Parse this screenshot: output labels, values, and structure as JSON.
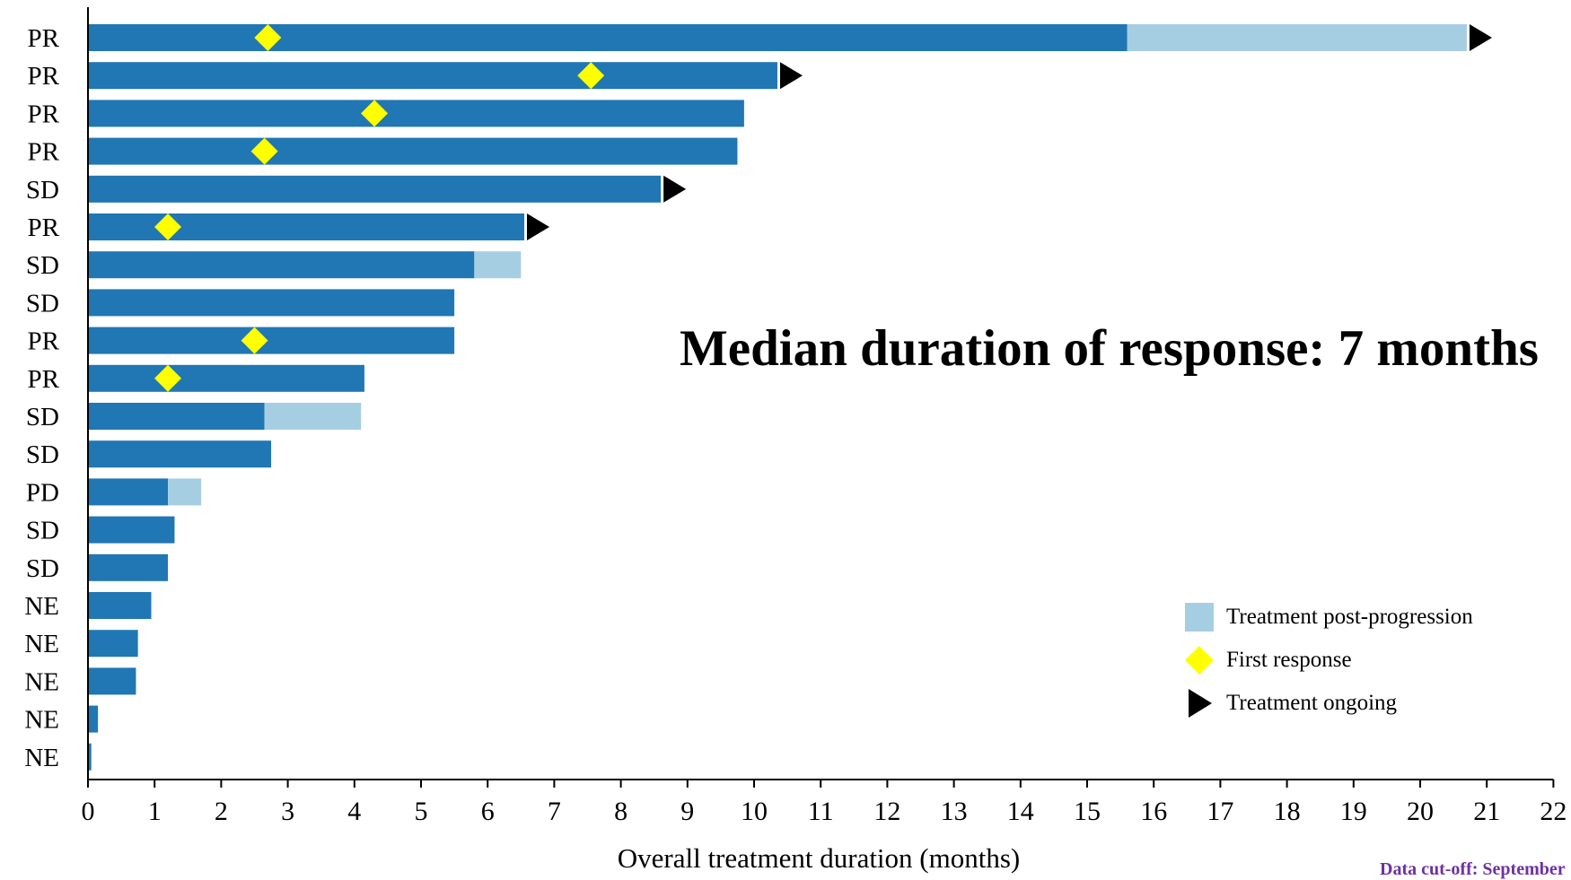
{
  "chart_data": {
    "type": "bar",
    "orientation": "horizontal",
    "title": "",
    "xlabel": "Overall treatment duration (months)",
    "ylabel": "",
    "xlim": [
      0,
      22
    ],
    "xticks": [
      0,
      1,
      2,
      3,
      4,
      5,
      6,
      7,
      8,
      9,
      10,
      11,
      12,
      13,
      14,
      15,
      16,
      17,
      18,
      19,
      20,
      21,
      22
    ],
    "grid": false,
    "legend_position": "bottom-right",
    "categories": [
      "PR",
      "PR",
      "PR",
      "PR",
      "SD",
      "PR",
      "SD",
      "SD",
      "PR",
      "PR",
      "SD",
      "SD",
      "PD",
      "SD",
      "SD",
      "NE",
      "NE",
      "NE",
      "NE",
      "NE"
    ],
    "series": [
      {
        "name": "",
        "color": "#2077b4",
        "values": [
          15.6,
          10.35,
          9.85,
          9.75,
          8.6,
          6.55,
          5.8,
          5.5,
          5.5,
          4.15,
          2.65,
          2.75,
          1.2,
          1.3,
          1.2,
          0.95,
          0.75,
          0.72,
          0.15,
          0.05
        ]
      },
      {
        "name": "Treatment post-progression",
        "color": "#a6cee3",
        "values": [
          5.1,
          0,
          0,
          0,
          0,
          0,
          0.7,
          0,
          0,
          0,
          1.45,
          0,
          0.5,
          0,
          0,
          0,
          0,
          0,
          0,
          0
        ]
      }
    ],
    "first_response": {
      "name": "First response",
      "color": "#ffff00",
      "points": [
        [
          0,
          2.7
        ],
        [
          1,
          7.55
        ],
        [
          2,
          4.3
        ],
        [
          3,
          2.65
        ],
        [
          5,
          1.2
        ],
        [
          8,
          2.5
        ],
        [
          9,
          1.2
        ]
      ]
    },
    "treatment_ongoing": {
      "name": "Treatment ongoing",
      "color": "#000000",
      "rows": [
        0,
        1,
        4,
        5
      ]
    },
    "annotations": [
      {
        "text": "Median duration of response: 7 months"
      },
      {
        "text": "Data cut-off: September"
      }
    ]
  },
  "legend": {
    "post_progression": "Treatment post-progression",
    "first_response": "First response",
    "ongoing": "Treatment ongoing"
  }
}
